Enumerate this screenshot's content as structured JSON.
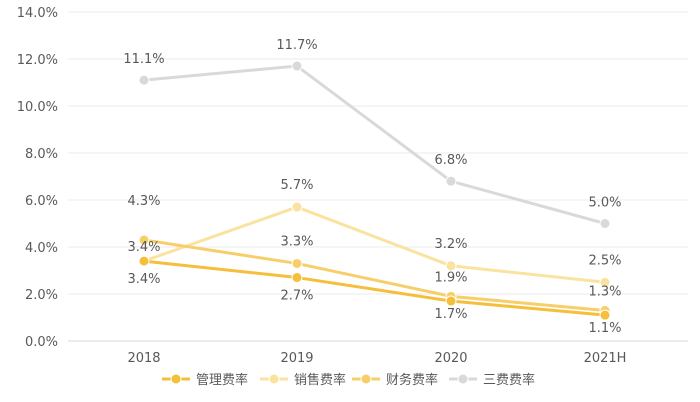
{
  "chart_data": {
    "type": "line",
    "categories": [
      "2018",
      "2019",
      "2020",
      "2021H"
    ],
    "ylim": [
      0,
      14
    ],
    "yticks": [
      "0.0%",
      "2.0%",
      "4.0%",
      "6.0%",
      "8.0%",
      "10.0%",
      "12.0%",
      "14.0%"
    ],
    "grid": "horizontal",
    "legend_position": "bottom",
    "series": [
      {
        "name": "管理费率",
        "color": "#F5BE3B",
        "values": [
          3.4,
          2.7,
          1.7,
          1.1
        ],
        "labels": [
          "3.4%",
          "2.7%",
          "1.7%",
          "1.1%"
        ]
      },
      {
        "name": "销售费率",
        "color": "#FAE2A0",
        "values": [
          3.4,
          5.7,
          3.2,
          2.5
        ],
        "labels": [
          "3.4%",
          "5.7%",
          "3.2%",
          "2.5%"
        ]
      },
      {
        "name": "财务费率",
        "color": "#F7CE6A",
        "values": [
          4.3,
          3.3,
          1.9,
          1.3
        ],
        "labels": [
          "4.3%",
          "3.3%",
          "1.9%",
          "1.3%"
        ]
      },
      {
        "name": "三费费率",
        "color": "#D9D9D9",
        "values": [
          11.1,
          11.7,
          6.8,
          5.0
        ],
        "labels": [
          "11.1%",
          "11.7%",
          "6.8%",
          "5.0%"
        ]
      }
    ]
  }
}
